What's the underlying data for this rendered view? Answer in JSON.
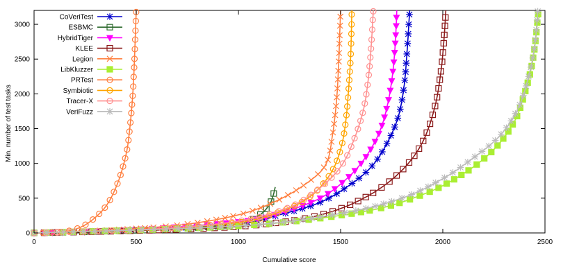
{
  "chart_data": {
    "type": "line",
    "title": "",
    "xlabel": "Cumulative score",
    "ylabel": "Min. number of test tasks",
    "xlim": [
      0,
      2500
    ],
    "ylim": [
      0,
      3200
    ],
    "xticks": [
      0,
      500,
      1000,
      1500,
      2000,
      2500
    ],
    "yticks": [
      0,
      500,
      1000,
      1500,
      2000,
      2500,
      3000
    ],
    "grid": false,
    "legend_position": "top-left",
    "series": [
      {
        "name": "CoVeriTest",
        "color": "#0000cc",
        "marker": "asterisk",
        "filled": false,
        "points": [
          [
            0,
            0
          ],
          [
            500,
            40
          ],
          [
            1000,
            130
          ],
          [
            1200,
            260
          ],
          [
            1400,
            440
          ],
          [
            1550,
            700
          ],
          [
            1650,
            950
          ],
          [
            1720,
            1250
          ],
          [
            1780,
            1650
          ],
          [
            1810,
            2100
          ],
          [
            1825,
            2600
          ],
          [
            1838,
            3200
          ]
        ]
      },
      {
        "name": "ESBMC",
        "color": "#2e6b2e",
        "marker": "square",
        "filled": false,
        "points": [
          [
            0,
            0
          ],
          [
            300,
            20
          ],
          [
            700,
            60
          ],
          [
            1000,
            130
          ],
          [
            1100,
            250
          ],
          [
            1150,
            400
          ],
          [
            1170,
            540
          ],
          [
            1180,
            660
          ]
        ]
      },
      {
        "name": "HybridTiger",
        "color": "#ff00ff",
        "marker": "triangle-down",
        "filled": true,
        "points": [
          [
            0,
            0
          ],
          [
            500,
            50
          ],
          [
            1000,
            160
          ],
          [
            1200,
            280
          ],
          [
            1400,
            500
          ],
          [
            1530,
            780
          ],
          [
            1620,
            1080
          ],
          [
            1690,
            1450
          ],
          [
            1730,
            1850
          ],
          [
            1755,
            2300
          ],
          [
            1768,
            2750
          ],
          [
            1775,
            3200
          ]
        ]
      },
      {
        "name": "KLEE",
        "color": "#8b1a1a",
        "marker": "square",
        "filled": false,
        "points": [
          [
            0,
            0
          ],
          [
            800,
            60
          ],
          [
            1200,
            150
          ],
          [
            1450,
            300
          ],
          [
            1650,
            560
          ],
          [
            1800,
            900
          ],
          [
            1900,
            1300
          ],
          [
            1960,
            1800
          ],
          [
            1990,
            2300
          ],
          [
            2005,
            2750
          ],
          [
            2015,
            3200
          ]
        ]
      },
      {
        "name": "Legion",
        "color": "#ff7f3f",
        "marker": "cross",
        "filled": false,
        "points": [
          [
            0,
            0
          ],
          [
            300,
            30
          ],
          [
            700,
            110
          ],
          [
            1000,
            260
          ],
          [
            1200,
            480
          ],
          [
            1350,
            750
          ],
          [
            1430,
            1000
          ],
          [
            1460,
            1400
          ],
          [
            1480,
            1900
          ],
          [
            1490,
            2400
          ],
          [
            1495,
            2800
          ],
          [
            1500,
            3200
          ]
        ]
      },
      {
        "name": "LibKluzzer",
        "color": "#aaee33",
        "marker": "square",
        "filled": true,
        "points": [
          [
            0,
            0
          ],
          [
            1000,
            100
          ],
          [
            1600,
            300
          ],
          [
            1900,
            550
          ],
          [
            2100,
            850
          ],
          [
            2250,
            1200
          ],
          [
            2350,
            1600
          ],
          [
            2400,
            2000
          ],
          [
            2435,
            2400
          ],
          [
            2455,
            2800
          ],
          [
            2468,
            3200
          ]
        ]
      },
      {
        "name": "PRTest",
        "color": "#ff7f3f",
        "marker": "circle",
        "filled": false,
        "points": [
          [
            0,
            0
          ],
          [
            150,
            20
          ],
          [
            240,
            100
          ],
          [
            310,
            250
          ],
          [
            360,
            420
          ],
          [
            400,
            650
          ],
          [
            430,
            900
          ],
          [
            455,
            1200
          ],
          [
            470,
            1550
          ],
          [
            482,
            1950
          ],
          [
            490,
            2400
          ],
          [
            495,
            2800
          ],
          [
            500,
            3200
          ]
        ]
      },
      {
        "name": "Symbiotic",
        "color": "#ffa500",
        "marker": "circle",
        "filled": false,
        "points": [
          [
            0,
            0
          ],
          [
            600,
            60
          ],
          [
            1000,
            150
          ],
          [
            1200,
            300
          ],
          [
            1350,
            520
          ],
          [
            1450,
            850
          ],
          [
            1500,
            1200
          ],
          [
            1525,
            1600
          ],
          [
            1540,
            2100
          ],
          [
            1550,
            2600
          ],
          [
            1555,
            3200
          ]
        ]
      },
      {
        "name": "Tracer-X",
        "color": "#ff9090",
        "marker": "circle",
        "filled": false,
        "points": [
          [
            0,
            0
          ],
          [
            600,
            60
          ],
          [
            1000,
            170
          ],
          [
            1250,
            370
          ],
          [
            1400,
            650
          ],
          [
            1500,
            950
          ],
          [
            1560,
            1300
          ],
          [
            1610,
            1750
          ],
          [
            1635,
            2200
          ],
          [
            1650,
            2700
          ],
          [
            1660,
            3200
          ]
        ]
      },
      {
        "name": "VeriFuzz",
        "color": "#bbbbbb",
        "marker": "asterisk",
        "filled": false,
        "points": [
          [
            0,
            0
          ],
          [
            1000,
            100
          ],
          [
            1500,
            280
          ],
          [
            1800,
            500
          ],
          [
            2000,
            780
          ],
          [
            2150,
            1080
          ],
          [
            2280,
            1400
          ],
          [
            2370,
            1800
          ],
          [
            2420,
            2250
          ],
          [
            2450,
            2700
          ],
          [
            2465,
            3200
          ]
        ]
      }
    ]
  }
}
